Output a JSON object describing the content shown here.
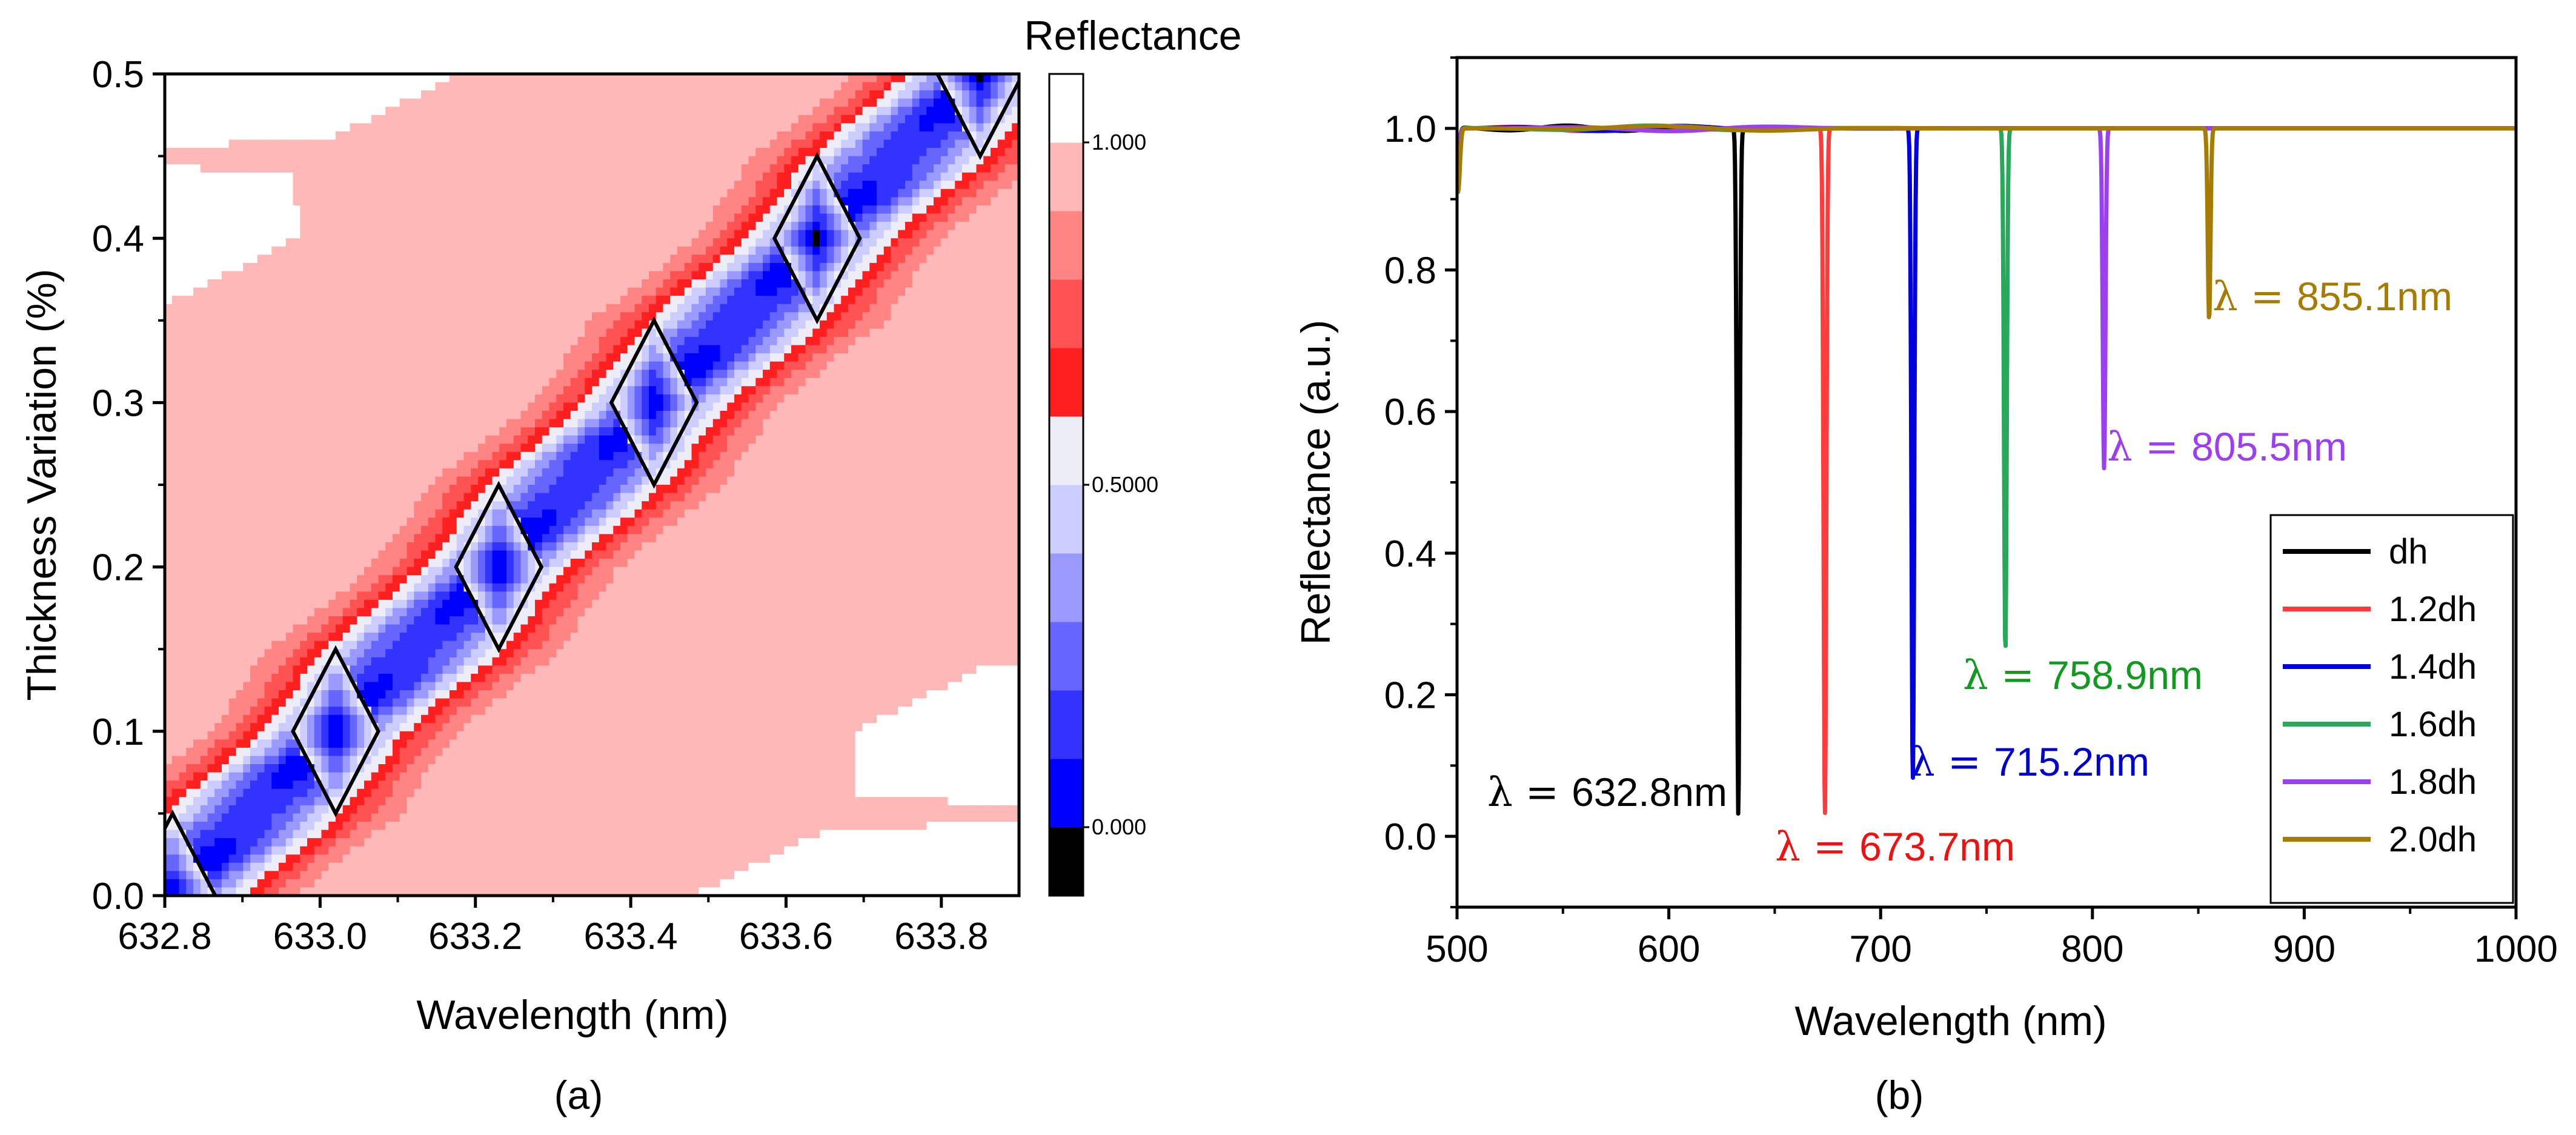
{
  "chart_data": [
    {
      "panel": "(a)",
      "type": "heatmap",
      "subtype": "filled-contour",
      "xlabel": "Wavelength (nm)",
      "ylabel": "Thickness Variation (%)",
      "xlim": [
        632.8,
        633.9
      ],
      "ylim": [
        0.0,
        0.5
      ],
      "xticks": [
        "632.8",
        "633.0",
        "633.2",
        "633.4",
        "633.6",
        "633.8"
      ],
      "xtick_values": [
        632.8,
        633.0,
        633.2,
        633.4,
        633.6,
        633.8
      ],
      "yticks": [
        "0.0",
        "0.1",
        "0.2",
        "0.3",
        "0.4",
        "0.5"
      ],
      "ytick_values": [
        0.0,
        0.1,
        0.2,
        0.3,
        0.4,
        0.5
      ],
      "resonance_centers": [
        {
          "wavelength": 632.81,
          "thickness": 0.0
        },
        {
          "wavelength": 633.02,
          "thickness": 0.1
        },
        {
          "wavelength": 633.23,
          "thickness": 0.2
        },
        {
          "wavelength": 633.43,
          "thickness": 0.3
        },
        {
          "wavelength": 633.64,
          "thickness": 0.4
        },
        {
          "wavelength": 633.85,
          "thickness": 0.5
        }
      ],
      "colorbar": {
        "title": "Reflectance",
        "ticks": [
          "0.000",
          "0.5000",
          "1.000"
        ],
        "tick_values": [
          0.0,
          0.5,
          1.0
        ],
        "range": [
          -0.1,
          1.1
        ],
        "levels": [
          {
            "from": -0.1,
            "to": 0.0,
            "color": "#000000"
          },
          {
            "from": 0.0,
            "to": 0.1,
            "color": "#0000ff"
          },
          {
            "from": 0.1,
            "to": 0.2,
            "color": "#3333ff"
          },
          {
            "from": 0.2,
            "to": 0.3,
            "color": "#6666ff"
          },
          {
            "from": 0.3,
            "to": 0.4,
            "color": "#9999ff"
          },
          {
            "from": 0.4,
            "to": 0.5,
            "color": "#ccccff"
          },
          {
            "from": 0.5,
            "to": 0.6,
            "color": "#ededf7"
          },
          {
            "from": 0.6,
            "to": 0.7,
            "color": "#ff1f1f"
          },
          {
            "from": 0.7,
            "to": 0.8,
            "color": "#ff5252"
          },
          {
            "from": 0.8,
            "to": 0.9,
            "color": "#ff8585"
          },
          {
            "from": 0.9,
            "to": 1.0,
            "color": "#ffb8b8"
          },
          {
            "from": 1.0,
            "to": 1.1,
            "color": "#ffffff"
          }
        ]
      }
    },
    {
      "panel": "(b)",
      "type": "line",
      "xlabel": "Wavelength (nm)",
      "ylabel": "Reflectance (a.u.)",
      "xlim": [
        500,
        1000
      ],
      "ylim": [
        -0.1,
        1.1
      ],
      "xticks": [
        "500",
        "600",
        "700",
        "800",
        "900",
        "1000"
      ],
      "xtick_values": [
        500,
        600,
        700,
        800,
        900,
        1000
      ],
      "yticks": [
        "0.0",
        "0.2",
        "0.4",
        "0.6",
        "0.8",
        "1.0"
      ],
      "ytick_values": [
        0.0,
        0.2,
        0.4,
        0.6,
        0.8,
        1.0
      ],
      "legend_position": "bottom-right",
      "series": [
        {
          "name": "dh",
          "color": "#000000",
          "dip_wavelength": 632.8,
          "dip_min": 0.03,
          "annotation": "632.8nm"
        },
        {
          "name": "1.2dh",
          "color": "#ff3b3b",
          "dip_wavelength": 673.7,
          "dip_min": 0.03,
          "annotation": "673.7nm"
        },
        {
          "name": "1.4dh",
          "color": "#0000e0",
          "dip_wavelength": 715.2,
          "dip_min": 0.08,
          "annotation": "715.2nm"
        },
        {
          "name": "1.6dh",
          "color": "#27a85a",
          "dip_wavelength": 758.9,
          "dip_min": 0.26,
          "annotation": "758.9nm"
        },
        {
          "name": "1.8dh",
          "color": "#9b3ff0",
          "dip_wavelength": 805.5,
          "dip_min": 0.52,
          "annotation": "805.5nm"
        },
        {
          "name": "2.0dh",
          "color": "#a67c00",
          "dip_wavelength": 855.1,
          "dip_min": 0.73,
          "annotation": "855.1nm"
        }
      ],
      "annotation_prefix": "λ =",
      "annotation_colors": [
        "#000000",
        "#ee1111",
        "#0000cc",
        "#119922",
        "#9b3ff0",
        "#a67c00"
      ]
    }
  ]
}
